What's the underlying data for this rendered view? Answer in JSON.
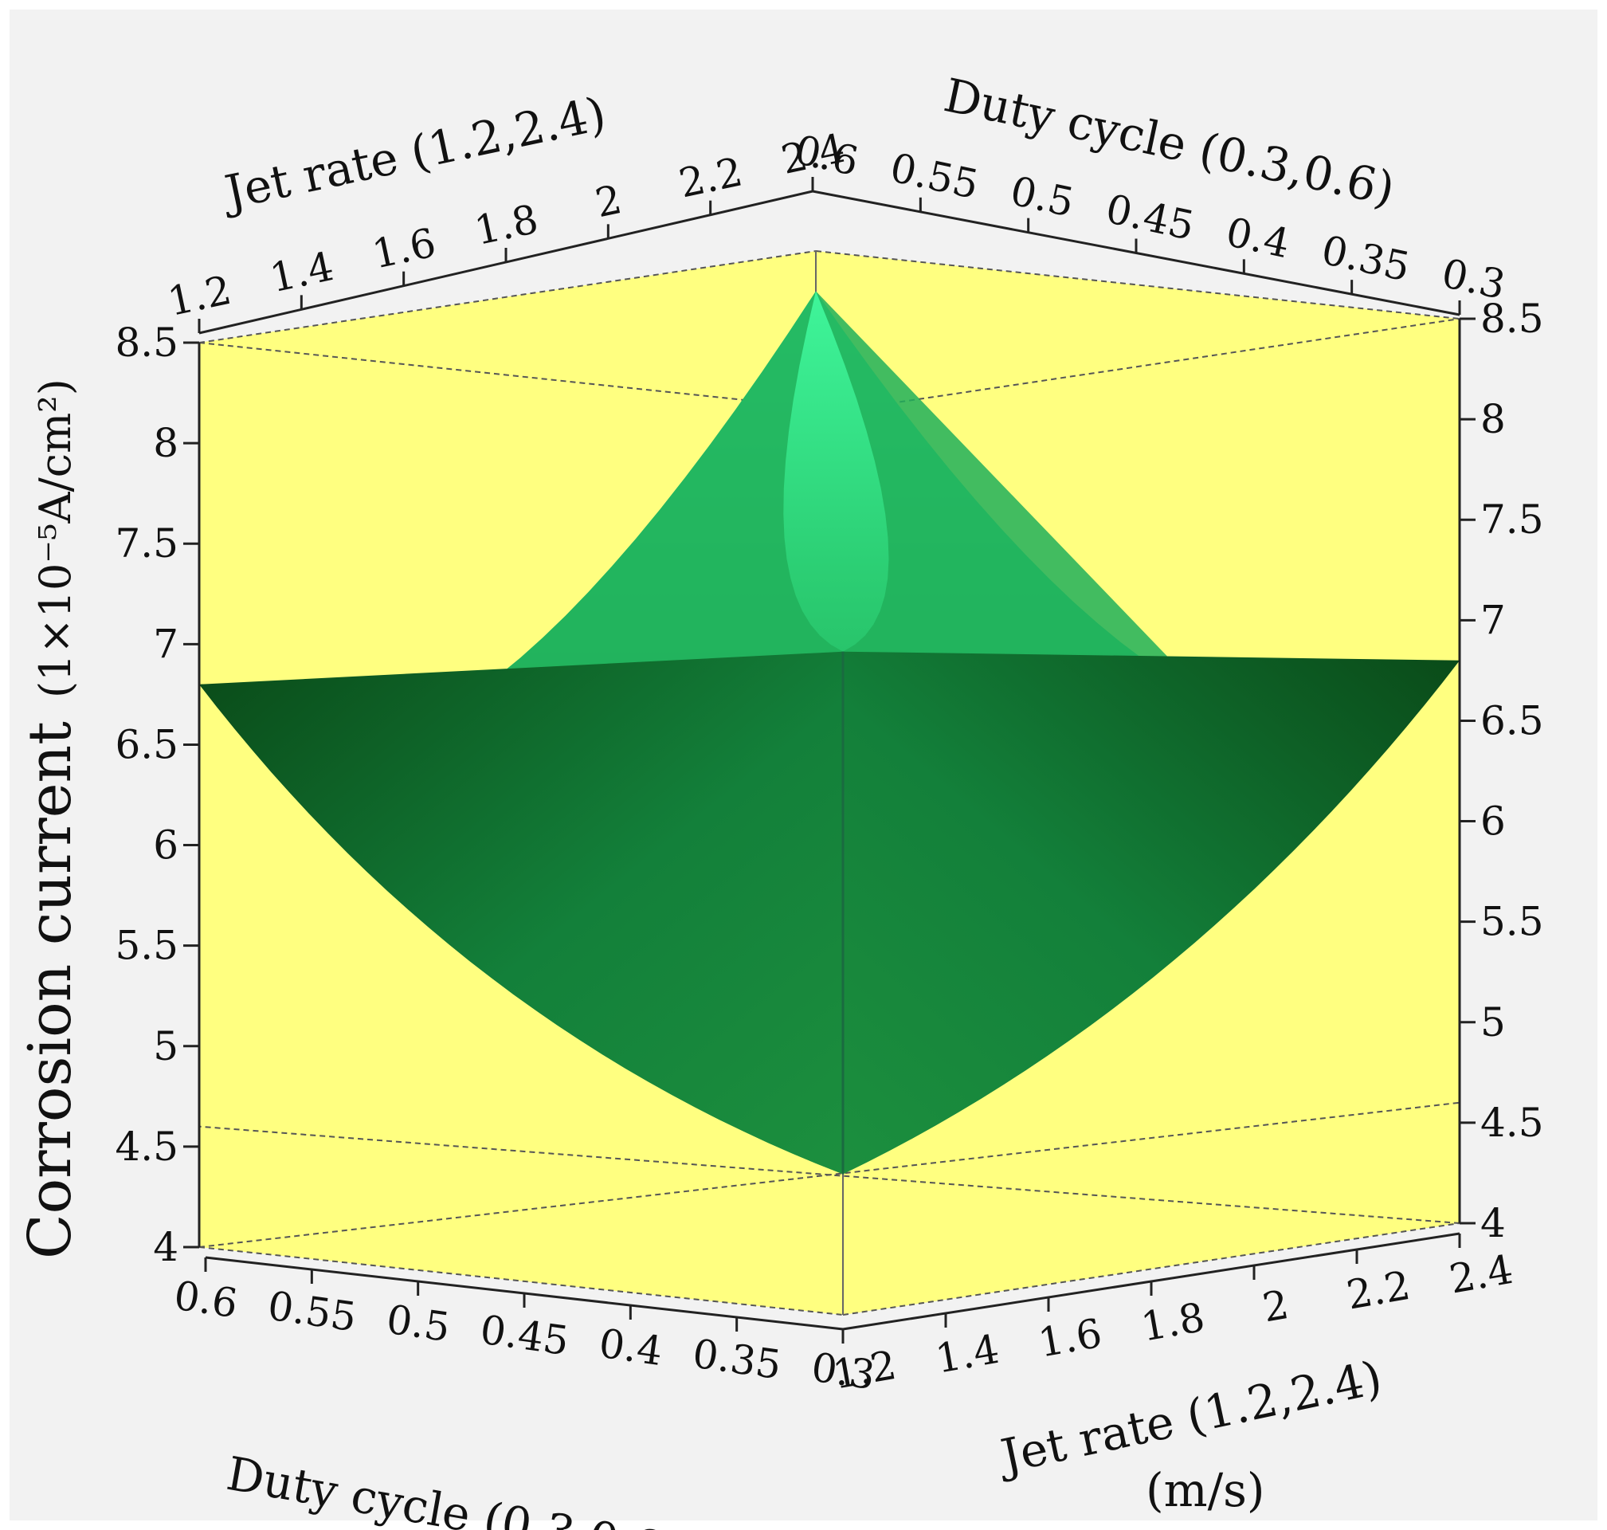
{
  "chart_data": {
    "type": "surface3d",
    "z_axis": {
      "title_main": "Corrosion current",
      "title_unit": "(1×10⁻⁵A/cm²)",
      "range": [
        4,
        8.5
      ],
      "ticks": [
        "4",
        "4.5",
        "5",
        "5.5",
        "6",
        "6.5",
        "7",
        "7.5",
        "8",
        "8.5"
      ]
    },
    "jet_rate_axis": {
      "title": "Jet rate (1.2,2.4)",
      "unit": "(m/s)",
      "range": [
        1.2,
        2.4
      ],
      "ticks": [
        "1.2",
        "1.4",
        "1.6",
        "1.8",
        "2",
        "2.2",
        "2.4"
      ]
    },
    "duty_cycle_axis": {
      "title": "Duty cycle (0.3,0.6)",
      "range": [
        0.3,
        0.6
      ],
      "ticks": [
        "0.6",
        "0.55",
        "0.5",
        "0.45",
        "0.4",
        "0.35",
        "0.3"
      ]
    },
    "surface": {
      "corner_values": [
        {
          "jet_rate": 1.2,
          "duty_cycle": 0.6,
          "corrosion_current": 6.8
        },
        {
          "jet_rate": 2.4,
          "duty_cycle": 0.3,
          "corrosion_current": 6.8
        },
        {
          "jet_rate": 2.4,
          "duty_cycle": 0.6,
          "corrosion_current": 8.3
        },
        {
          "jet_rate": 1.2,
          "duty_cycle": 0.3,
          "corrosion_current": 7.3
        }
      ],
      "minimum": {
        "jet_rate": 1.8,
        "duty_cycle": 0.45,
        "corrosion_current": 4.7
      }
    },
    "colors": {
      "wall": "#ffff80",
      "surface_dark": "#0b5a1e",
      "surface_mid": "#1e9a3e",
      "surface_light": "#33ee88"
    },
    "grid": false
  }
}
